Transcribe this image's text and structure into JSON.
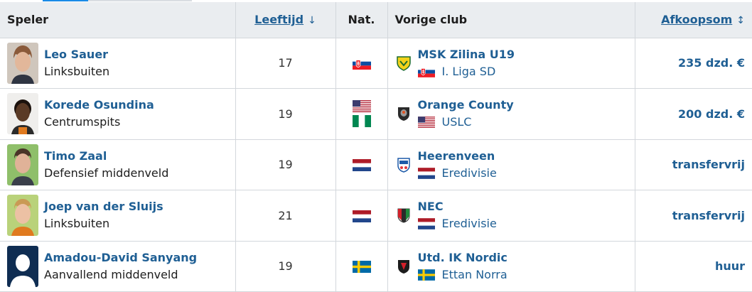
{
  "header": {
    "speler": "Speler",
    "leeftijd": "Leeftijd",
    "leeftijd_sort": "↓",
    "nat": "Nat.",
    "vorige_club": "Vorige club",
    "afkoopsom": "Afkoopsom",
    "afkoopsom_sort": "↕"
  },
  "rows": [
    {
      "name": "Leo Sauer",
      "position": "Linksbuiten",
      "age": "17",
      "club": "MSK Zilina U19",
      "league": "I. Liga SD",
      "fee": "235 dzd. €"
    },
    {
      "name": "Korede Osundina",
      "position": "Centrumspits",
      "age": "19",
      "club": "Orange County",
      "league": "USLC",
      "fee": "200 dzd. €"
    },
    {
      "name": "Timo Zaal",
      "position": "Defensief middenveld",
      "age": "19",
      "club": "Heerenveen",
      "league": "Eredivisie",
      "fee": "transfervrij"
    },
    {
      "name": "Joep van der Sluijs",
      "position": "Linksbuiten",
      "age": "21",
      "club": "NEC",
      "league": "Eredivisie",
      "fee": "transfervrij"
    },
    {
      "name": "Amadou-David Sanyang",
      "position": "Aanvallend middenveld",
      "age": "19",
      "club": "Utd. IK Nordic",
      "league": "Ettan Norra",
      "fee": "huur"
    }
  ],
  "colors": {
    "link": "#1f5f94",
    "header_bg": "#eaedf0",
    "border": "#d3d7dc"
  },
  "flags": {
    "row0": [
      "slovakia-flag"
    ],
    "row1": [
      "usa-flag",
      "nigeria-flag"
    ],
    "row2": [
      "netherlands-flag"
    ],
    "row3": [
      "netherlands-flag"
    ],
    "row4": [
      "sweden-flag"
    ]
  }
}
